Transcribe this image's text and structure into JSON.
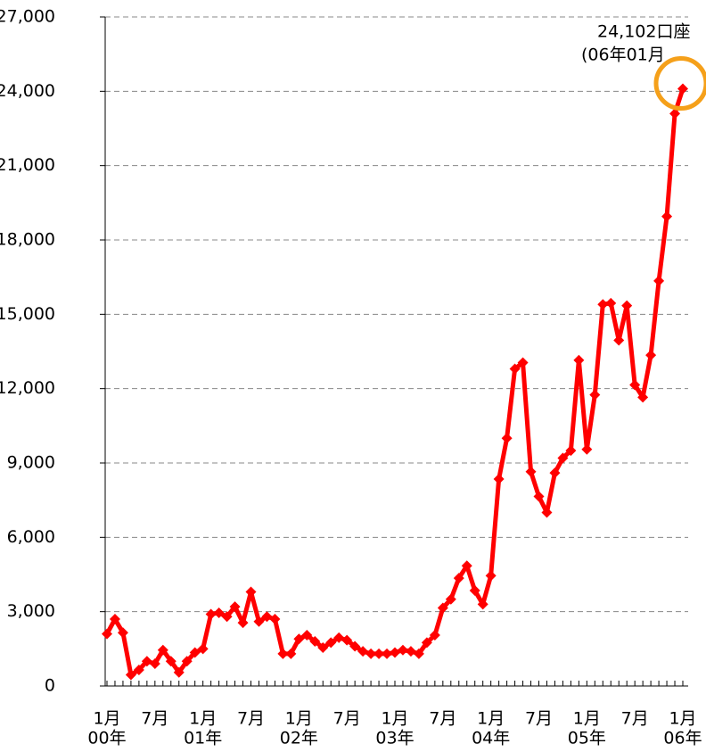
{
  "chart_data": {
    "type": "line",
    "categories": [
      "1月",
      null,
      null,
      null,
      null,
      null,
      "7月",
      null,
      null,
      null,
      null,
      null,
      "1月",
      null,
      null,
      null,
      null,
      null,
      "7月",
      null,
      null,
      null,
      null,
      null,
      "1月",
      null,
      null,
      null,
      null,
      null,
      "7月",
      null,
      null,
      null,
      null,
      null,
      "1月",
      null,
      null,
      null,
      null,
      null,
      "7月",
      null,
      null,
      null,
      null,
      null,
      "1月",
      null,
      null,
      null,
      null,
      null,
      "7月",
      null,
      null,
      null,
      null,
      null,
      "1月",
      null,
      null,
      null,
      null,
      null,
      "7月",
      null,
      null,
      null,
      null,
      null,
      "1月"
    ],
    "year_labels": [
      "00年",
      "01年",
      "02年",
      "03年",
      "04年",
      "05年",
      "06年"
    ],
    "series": [
      {
        "color": "#ff0000",
        "values": [
          2100,
          2700,
          2150,
          450,
          650,
          1000,
          900,
          1450,
          1000,
          550,
          1000,
          1350,
          1500,
          2900,
          2950,
          2800,
          3200,
          2550,
          3800,
          2600,
          2800,
          2700,
          1300,
          1300,
          1900,
          2050,
          1800,
          1550,
          1750,
          1950,
          1850,
          1600,
          1400,
          1300,
          1300,
          1300,
          1350,
          1450,
          1400,
          1300,
          1750,
          2050,
          3150,
          3500,
          4350,
          4850,
          3850,
          3300,
          4450,
          8350,
          10000,
          12800,
          13050,
          8650,
          7650,
          7000,
          8600,
          9200,
          9500,
          13150,
          9550,
          11750,
          15400,
          15450,
          13950,
          15350,
          12150,
          11650,
          13350,
          16350,
          18950,
          23100,
          24102
        ]
      }
    ],
    "ylim": [
      0,
      27000
    ],
    "yticks": [
      0,
      {
        "value": 3000,
        "label": "3,000"
      },
      {
        "value": 6000,
        "label": "6,000"
      },
      {
        "value": 9000,
        "label": "9,000"
      },
      {
        "value": 12000,
        "label": "12,000"
      },
      {
        "value": 15000,
        "label": "15,000"
      },
      {
        "value": 18000,
        "label": "18,000"
      },
      {
        "value": 21000,
        "label": "21,000"
      },
      {
        "value": 24000,
        "label": "24,000"
      },
      {
        "value": 27000,
        "label": "27,000"
      }
    ],
    "grid": true,
    "annotation": [
      "24,102口座",
      "(06年01月"
    ],
    "highlight_color": "#f5a01a"
  }
}
